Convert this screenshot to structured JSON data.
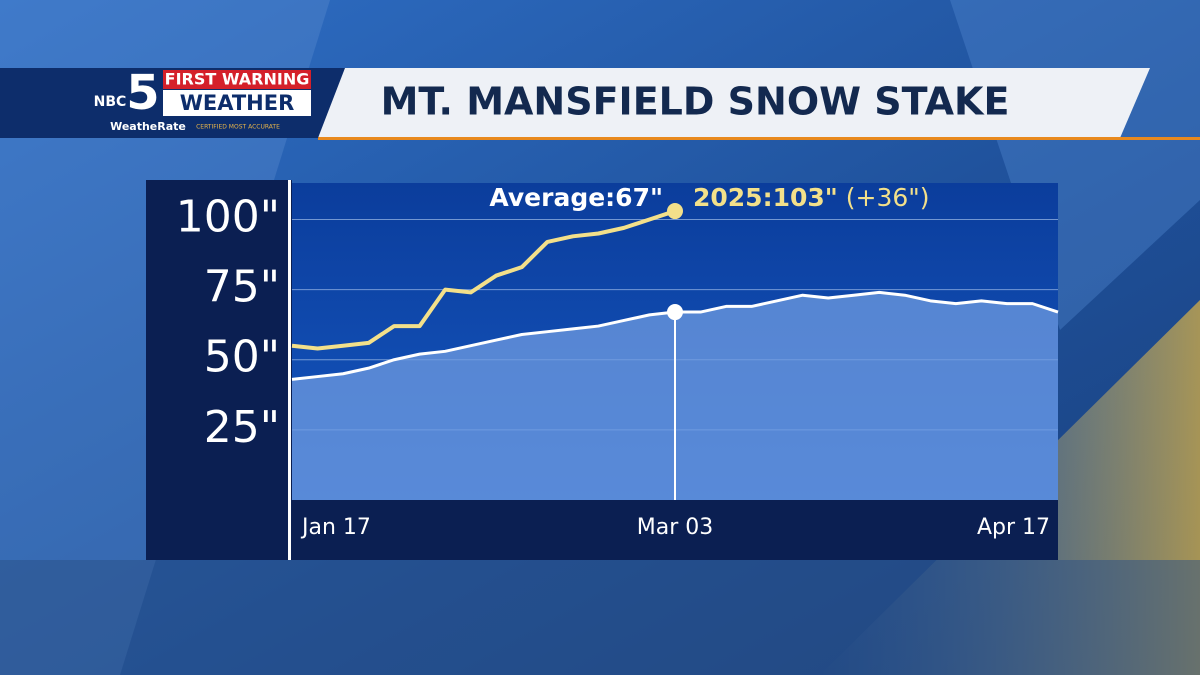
{
  "header": {
    "network": "NBC",
    "channel": "5",
    "brand_top": "FIRST WARNING",
    "brand_bottom": "WEATHER",
    "badge": "WeatheRate",
    "badge_note": "CERTIFIED MOST ACCURATE"
  },
  "chart_data": {
    "type": "line",
    "title": "MT. MANSFIELD SNOW STAKE",
    "categories": [
      "Jan 17",
      null,
      null,
      null,
      null,
      null,
      null,
      null,
      null,
      null,
      null,
      null,
      null,
      null,
      null,
      "Mar 03",
      null,
      null,
      null,
      null,
      null,
      null,
      null,
      null,
      null,
      null,
      null,
      null,
      null,
      null,
      "Apr 17"
    ],
    "series": [
      {
        "name": "Average",
        "color": "#ffffff",
        "values": [
          43,
          44,
          45,
          47,
          50,
          52,
          53,
          55,
          57,
          59,
          60,
          61,
          62,
          64,
          66,
          67,
          67,
          69,
          69,
          71,
          73,
          72,
          73,
          74,
          73,
          71,
          70,
          71,
          70,
          70,
          67
        ]
      },
      {
        "name": "2025",
        "color": "#f3e08a",
        "values": [
          55,
          54,
          55,
          56,
          62,
          62,
          75,
          74,
          80,
          83,
          92,
          94,
          95,
          97,
          100,
          103,
          null,
          null,
          null,
          null,
          null,
          null,
          null,
          null,
          null,
          null,
          null,
          null,
          null,
          null,
          null
        ]
      }
    ],
    "ylim": [
      0,
      113
    ],
    "yticks": [
      {
        "value": 25,
        "label": "25\""
      },
      {
        "value": 50,
        "label": "50\""
      },
      {
        "value": 75,
        "label": "75\""
      },
      {
        "value": 100,
        "label": "100\""
      }
    ],
    "grid": true,
    "annotations": [
      "Average:67\"",
      "2025:103\"",
      "(+36\")"
    ]
  }
}
